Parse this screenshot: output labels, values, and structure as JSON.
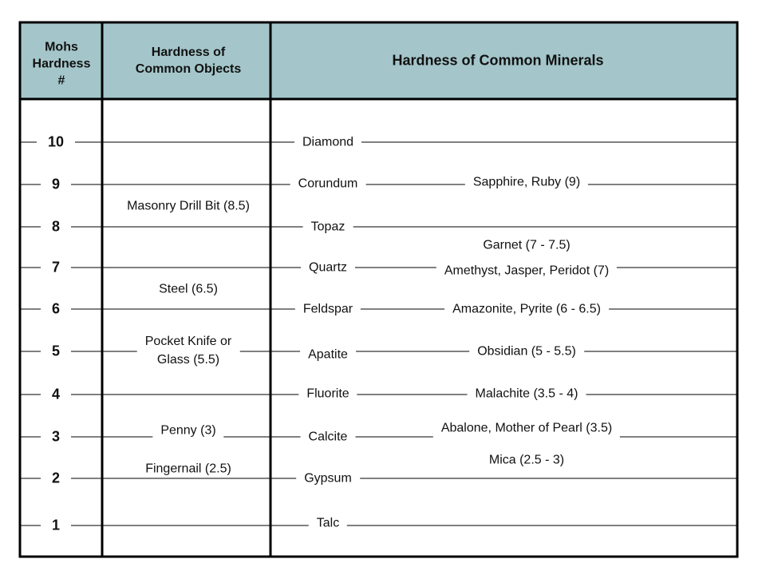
{
  "header": {
    "mohs": "Mohs\nHardness\n#",
    "objects": "Hardness of\nCommon Objects",
    "minerals": "Hardness of Common Minerals"
  },
  "scale": [
    10,
    9,
    8,
    7,
    6,
    5,
    4,
    3,
    2,
    1
  ],
  "index_minerals": [
    "Diamond",
    "Corundum",
    "Topaz",
    "Quartz",
    "Feldspar",
    "Apatite",
    "Fluorite",
    "Calcite",
    "Gypsum",
    "Talc"
  ],
  "common_objects": [
    "Masonry Drill Bit (8.5)",
    "Steel (6.5)",
    "Pocket Knife or\nGlass (5.5)",
    "Penny (3)",
    "Fingernail (2.5)"
  ],
  "other_minerals": [
    "Sapphire, Ruby (9)",
    "Garnet (7 - 7.5)",
    "Amethyst, Jasper, Peridot (7)",
    "Amazonite, Pyrite (6 - 6.5)",
    "Obsidian (5 - 5.5)",
    "Malachite (3.5 - 4)",
    "Abalone, Mother of Pearl (3.5)",
    "Mica (2.5 - 3)"
  ]
}
